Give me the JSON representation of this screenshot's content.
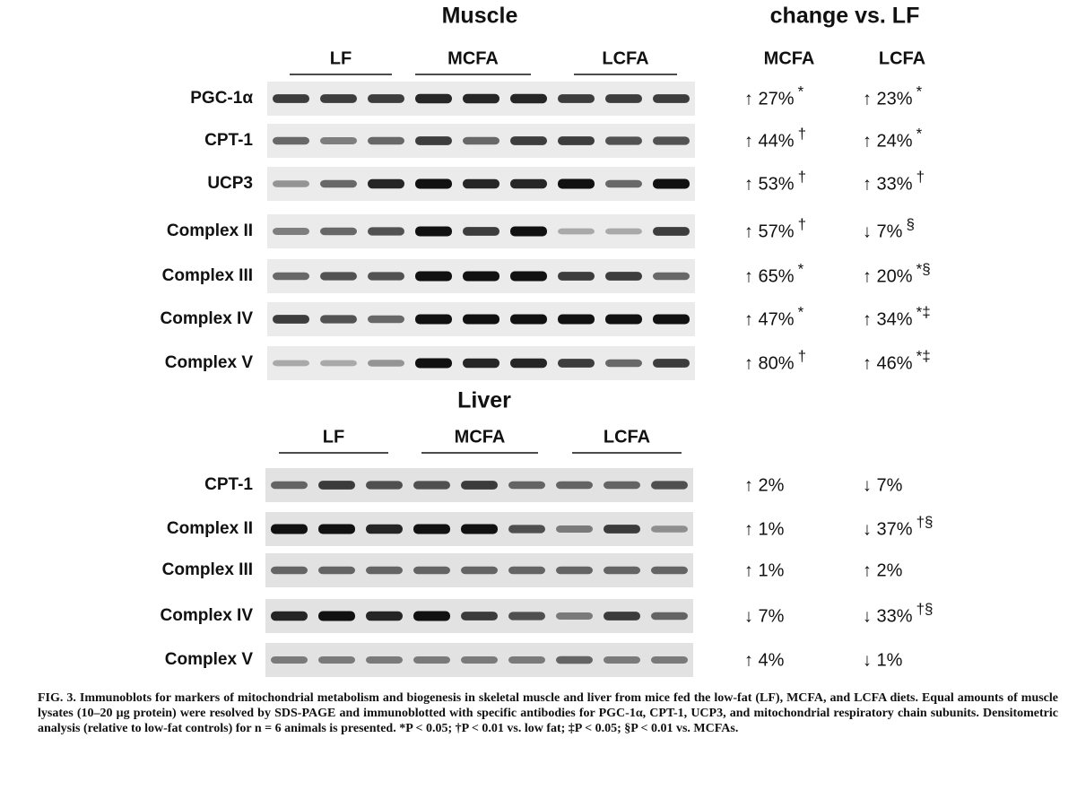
{
  "header": {
    "muscle_title": "Muscle",
    "change_title": "change vs. LF",
    "change_columns": [
      "MCFA",
      "LCFA"
    ]
  },
  "muscle": {
    "groups": [
      "LF",
      "MCFA",
      "LCFA"
    ],
    "rows": [
      {
        "label": "PGC-1α",
        "mcfa": {
          "text": "↑ 27%",
          "sig": "*"
        },
        "lcfa": {
          "text": "↑ 23%",
          "sig": "*"
        }
      },
      {
        "label": "CPT-1",
        "mcfa": {
          "text": "↑ 44%",
          "sig": "†"
        },
        "lcfa": {
          "text": "↑ 24%",
          "sig": "*"
        }
      },
      {
        "label": "UCP3",
        "mcfa": {
          "text": "↑ 53%",
          "sig": "†"
        },
        "lcfa": {
          "text": "↑ 33%",
          "sig": "†"
        }
      },
      {
        "label": "Complex II",
        "mcfa": {
          "text": "↑ 57%",
          "sig": "†"
        },
        "lcfa": {
          "text": "↓ 7%",
          "sig": "§"
        }
      },
      {
        "label": "Complex III",
        "mcfa": {
          "text": "↑ 65%",
          "sig": "*"
        },
        "lcfa": {
          "text": "↑ 20%",
          "sig": "*§"
        }
      },
      {
        "label": "Complex IV",
        "mcfa": {
          "text": "↑ 47%",
          "sig": "*"
        },
        "lcfa": {
          "text": "↑ 34%",
          "sig": "*‡"
        }
      },
      {
        "label": "Complex V",
        "mcfa": {
          "text": "↑ 80%",
          "sig": "†"
        },
        "lcfa": {
          "text": "↑ 46%",
          "sig": "*‡"
        }
      }
    ]
  },
  "liver": {
    "title": "Liver",
    "groups": [
      "LF",
      "MCFA",
      "LCFA"
    ],
    "rows": [
      {
        "label": "CPT-1",
        "mcfa": {
          "text": "↑ 2%"
        },
        "lcfa": {
          "text": "↓ 7%"
        }
      },
      {
        "label": "Complex II",
        "mcfa": {
          "text": "↑ 1%"
        },
        "lcfa": {
          "text": "↓ 37%",
          "sig": "†§"
        }
      },
      {
        "label": "Complex III",
        "mcfa": {
          "text": "↑ 1%"
        },
        "lcfa": {
          "text": "↑ 2%"
        }
      },
      {
        "label": "Complex IV",
        "mcfa": {
          "text": "↓ 7%"
        },
        "lcfa": {
          "text": "↓ 33%",
          "sig": "†§"
        }
      },
      {
        "label": "Complex V",
        "mcfa": {
          "text": "↑ 4%"
        },
        "lcfa": {
          "text": "↓ 1%"
        }
      }
    ]
  },
  "caption": "FIG. 3. Immunoblots for markers of mitochondrial metabolism and biogenesis in skeletal muscle and liver from mice fed the low-fat (LF), MCFA, and LCFA diets. Equal amounts of muscle lysates (10–20 μg protein) were resolved by SDS-PAGE and immunoblotted with specific antibodies for PGC-1α, CPT-1, UCP3, and mitochondrial respiratory chain subunits. Densitometric analysis (relative to low-fat controls) for n = 6 animals is presented. *P < 0.05; †P < 0.01 vs. low fat; ‡P < 0.05; §P < 0.01 vs. MCFAs."
}
